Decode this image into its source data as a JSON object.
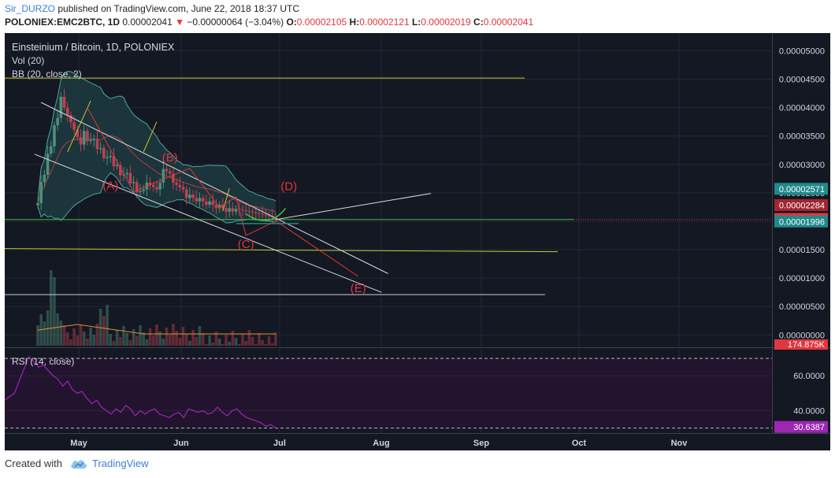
{
  "header": {
    "user": "Sir_DURZO",
    "published": "published on TradingView.com, June 22, 2018 18:37 UTC",
    "symbol": "POLONIEX:EMC2BTC, 1D",
    "price": "0.00002041",
    "change": "−0.00000064 (−3.04%)",
    "o_label": "O:",
    "o_value": "0.00002105",
    "h_label": "H:",
    "h_value": "0.00002121",
    "l_label": "L:",
    "l_value": "0.00002019",
    "c_label": "C:",
    "c_value": "0.00002041"
  },
  "legend": {
    "main": "Einsteinium / Bitcoin, 1D, POLONIEX",
    "vol": "Vol (20)",
    "bb": "BB (20, close, 2)",
    "rsi": "RSI (14, close)"
  },
  "footer": {
    "created_with": "Created with",
    "brand": "TradingView"
  },
  "colors": {
    "background": "#141823",
    "up": "#4f8f7a",
    "down": "#c04050",
    "bb_fill": "#1d3a3f",
    "bb_line": "#4aa6a0",
    "yellow_line": "#c8c832",
    "green_line": "#3fbf3f",
    "rsi_line": "#9c27b0",
    "red_marker": "#e0363e"
  },
  "chart_data": {
    "type": "candlestick",
    "title": "Einsteinium / Bitcoin, 1D, POLONIEX",
    "y_axis_ticks": [
      "0.00005000",
      "0.00004500",
      "0.00004000",
      "0.00003500",
      "0.00003000",
      "0.00002500",
      "0.00002000",
      "0.00001500",
      "0.00001000",
      "0.00000500",
      "0.00000000"
    ],
    "x_axis_ticks": [
      "May",
      "Jun",
      "Jul",
      "Aug",
      "Sep",
      "Oct",
      "Nov"
    ],
    "ylim": [
      -1.2e-06,
      5.2e-05
    ],
    "price_labels": [
      {
        "value": "0.00002571",
        "color": "#1f8a8a"
      },
      {
        "value": "0.00002284",
        "color": "#a02630"
      },
      {
        "value": "0.00002041",
        "color": "#e0363e"
      },
      {
        "value": "0.00001996",
        "color": "#1f8a8a"
      }
    ],
    "volume_label": "174.875K",
    "elliott_labels": [
      "(A)",
      "(B)",
      "(C)",
      "(D)",
      "(E)"
    ],
    "horizontal_levels": [
      {
        "price": 4.52e-05,
        "color": "yellow"
      },
      {
        "price": 2.03e-05,
        "color": "green"
      },
      {
        "price": 1.52e-05,
        "color": "yellow"
      },
      {
        "price": 7.1e-06,
        "color": "gray"
      }
    ],
    "rsi": {
      "name": "RSI (14, close)",
      "last_value": "30.6387",
      "y_axis_ticks": [
        "60.0000",
        "40.0000"
      ],
      "bands": [
        70,
        30
      ],
      "ylim": [
        28,
        75
      ],
      "values": [
        46,
        48,
        50,
        57,
        64,
        71,
        68,
        65,
        66,
        63,
        60,
        58,
        54,
        57,
        52,
        50,
        51,
        47,
        44,
        46,
        42,
        40,
        38,
        41,
        39,
        43,
        41,
        37,
        40,
        38,
        40,
        41,
        38,
        37,
        36,
        38,
        39,
        36,
        41,
        40,
        39,
        40,
        38,
        39,
        42,
        39,
        37,
        40,
        41,
        38,
        36,
        35,
        34,
        33,
        31,
        32,
        30
      ]
    }
  }
}
